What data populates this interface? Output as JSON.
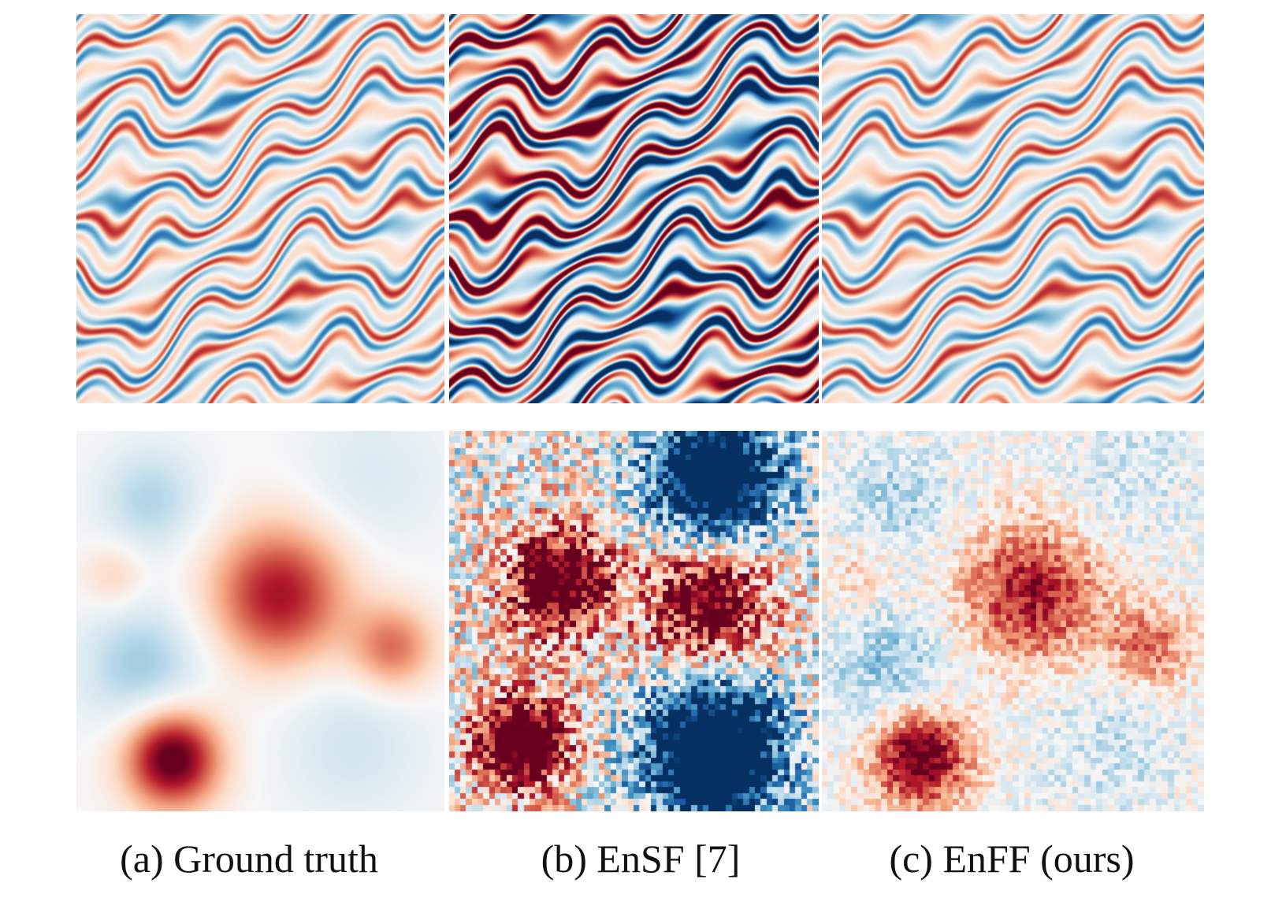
{
  "figure": {
    "captions": [
      {
        "label": "(a) Ground truth"
      },
      {
        "label": "(b) EnSF [7]"
      },
      {
        "label": "(c) EnFF (ours)"
      }
    ],
    "colormap": {
      "name": "RdBu",
      "low": "#053061",
      "mid": "#f7f7f7",
      "high": "#67001f"
    }
  }
}
